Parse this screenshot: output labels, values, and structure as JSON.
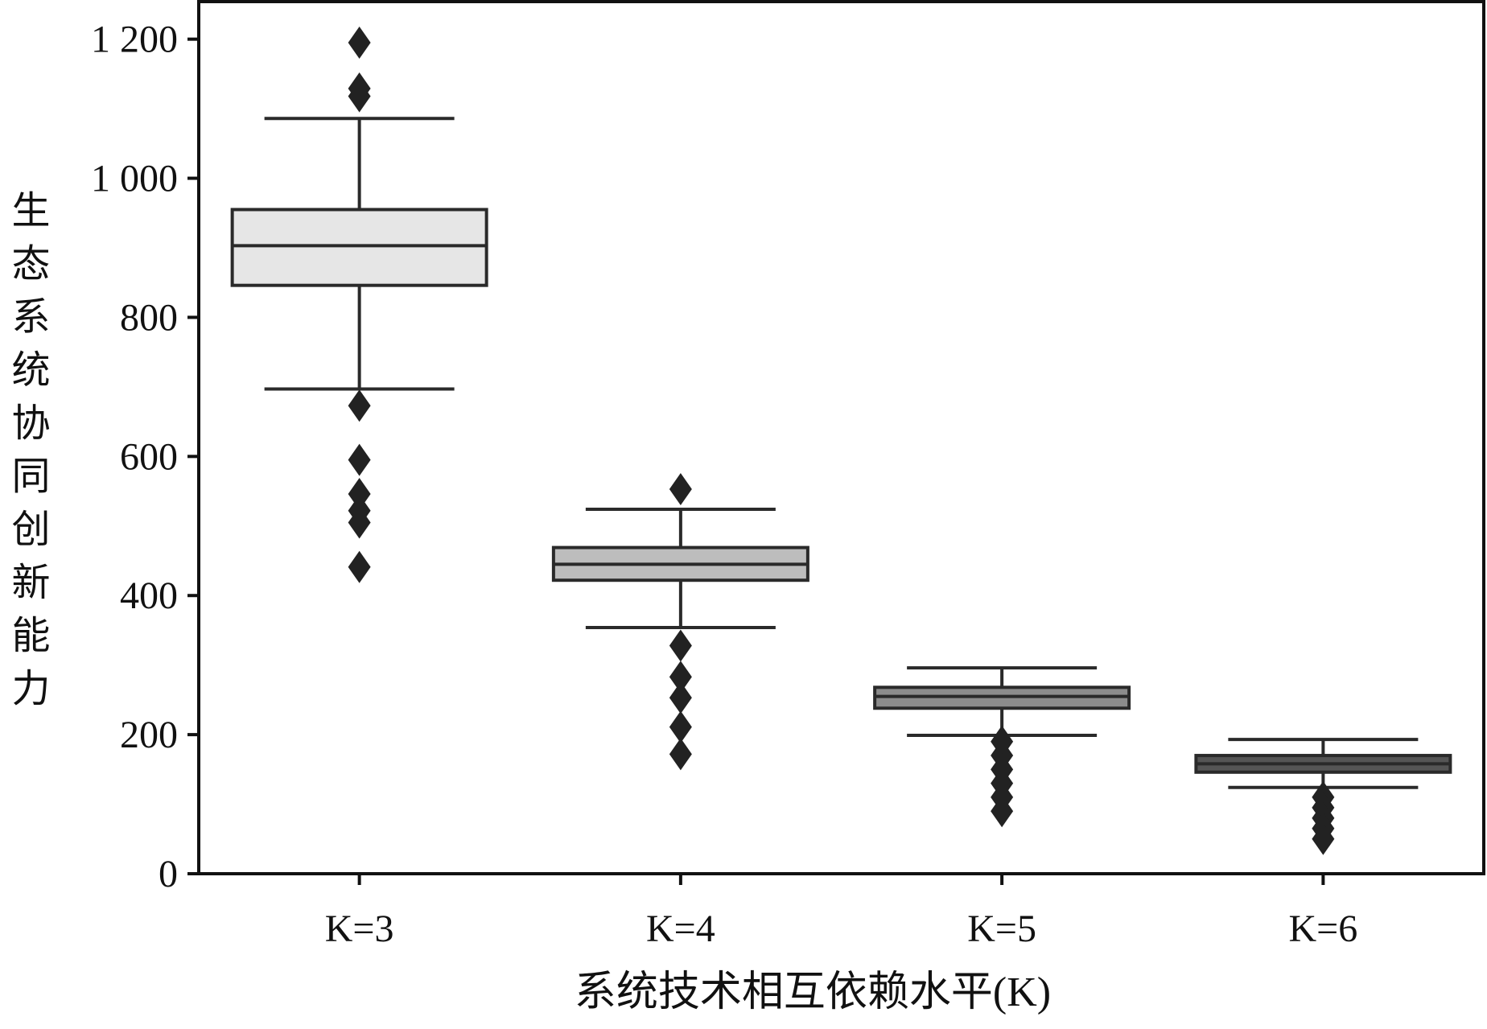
{
  "chart_data": {
    "type": "box",
    "x_label": "系统技术相互依赖水平(K)",
    "y_label": "生态系统协同创新能力",
    "categories": [
      "K=3",
      "K=4",
      "K=5",
      "K=6"
    ],
    "colors": [
      "#e6e6e6",
      "#bdbdbd",
      "#8c8c8c",
      "#555555"
    ],
    "outlier_color": "#222222",
    "boxes": [
      {
        "whisker_low": 697,
        "q1": 846,
        "median": 903,
        "q3": 955,
        "whisker_high": 1086,
        "outliers": [
          1195,
          1129,
          1118,
          673,
          595,
          546,
          522,
          505,
          441
        ]
      },
      {
        "whisker_low": 354,
        "q1": 422,
        "median": 445,
        "q3": 469,
        "whisker_high": 524,
        "outliers": [
          553,
          328,
          283,
          253,
          211,
          172
        ]
      },
      {
        "whisker_low": 199,
        "q1": 238,
        "median": 255,
        "q3": 268,
        "whisker_high": 296,
        "outliers": [
          190,
          170,
          150,
          130,
          110,
          90
        ]
      },
      {
        "whisker_low": 124,
        "q1": 146,
        "median": 158,
        "q3": 170,
        "whisker_high": 193,
        "outliers": [
          110,
          95,
          80,
          65,
          50
        ]
      }
    ],
    "ylim": [
      0,
      1254
    ],
    "yticks": [
      0,
      200,
      400,
      600,
      800,
      {
        "value": 1000,
        "label": "1 000"
      },
      {
        "value": 1200,
        "label": "1 200"
      }
    ]
  }
}
